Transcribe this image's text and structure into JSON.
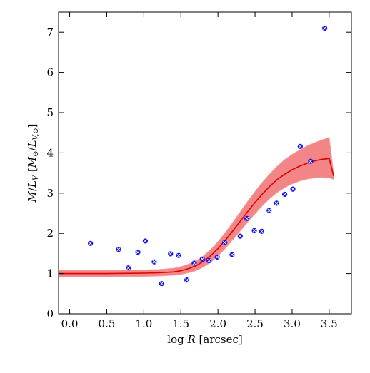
{
  "chart_data": {
    "type": "scatter",
    "xlabel": "log R [arcsec]",
    "ylabel": "M/L_V [M_sun/L_V,sun]",
    "xlim": [
      -0.15,
      3.8
    ],
    "ylim": [
      0,
      7.5
    ],
    "xticks": [
      0.0,
      0.5,
      1.0,
      1.5,
      2.0,
      2.5,
      3.0,
      3.5
    ],
    "xtick_labels": [
      "0.0",
      "0.5",
      "1.0",
      "1.5",
      "2.0",
      "2.5",
      "3.0",
      "3.5"
    ],
    "yticks": [
      0,
      1,
      2,
      3,
      4,
      5,
      6,
      7
    ],
    "ytick_labels": [
      "0",
      "1",
      "2",
      "3",
      "4",
      "5",
      "6",
      "7"
    ],
    "grid": false,
    "legend": "none",
    "series": [
      {
        "kind": "points",
        "color": "#1010ee",
        "x": [
          0.28,
          0.66,
          0.79,
          0.92,
          1.02,
          1.14,
          1.24,
          1.36,
          1.47,
          1.58,
          1.68,
          1.79,
          1.88,
          1.99,
          2.09,
          2.19,
          2.3,
          2.39,
          2.49,
          2.59,
          2.69,
          2.79,
          2.9,
          3.01,
          3.11,
          3.25,
          3.44
        ],
        "y": [
          1.75,
          1.6,
          1.14,
          1.53,
          1.81,
          1.29,
          0.75,
          1.49,
          1.45,
          0.84,
          1.26,
          1.36,
          1.32,
          1.41,
          1.77,
          1.47,
          1.93,
          2.37,
          2.07,
          2.05,
          2.57,
          2.75,
          2.97,
          3.1,
          4.16,
          3.79,
          7.1
        ]
      },
      {
        "kind": "model-line",
        "color": "#dd0000",
        "x": [
          -0.15,
          0.0,
          0.5,
          1.0,
          1.2,
          1.4,
          1.5,
          1.6,
          1.7,
          1.8,
          1.9,
          2.0,
          2.1,
          2.2,
          2.3,
          2.4,
          2.5,
          2.6,
          2.7,
          2.8,
          2.9,
          3.0,
          3.1,
          3.2,
          3.3,
          3.4,
          3.5,
          3.56
        ],
        "y": [
          1.0,
          1.0,
          1.0,
          1.01,
          1.02,
          1.04,
          1.07,
          1.12,
          1.19,
          1.3,
          1.44,
          1.62,
          1.83,
          2.06,
          2.3,
          2.54,
          2.77,
          2.98,
          3.17,
          3.34,
          3.47,
          3.58,
          3.67,
          3.74,
          3.8,
          3.84,
          3.86,
          3.42
        ]
      },
      {
        "kind": "model-band",
        "color": "#f07070",
        "x": [
          -0.15,
          0.0,
          0.5,
          1.0,
          1.2,
          1.4,
          1.5,
          1.6,
          1.7,
          1.8,
          1.9,
          2.0,
          2.1,
          2.2,
          2.3,
          2.4,
          2.5,
          2.6,
          2.7,
          2.8,
          2.9,
          3.0,
          3.1,
          3.2,
          3.3,
          3.4,
          3.5,
          3.56
        ],
        "upper": [
          1.08,
          1.08,
          1.08,
          1.09,
          1.1,
          1.13,
          1.17,
          1.23,
          1.31,
          1.43,
          1.59,
          1.79,
          2.02,
          2.27,
          2.53,
          2.79,
          3.04,
          3.27,
          3.48,
          3.67,
          3.83,
          3.96,
          4.07,
          4.17,
          4.25,
          4.32,
          4.38,
          3.48
        ],
        "lower": [
          0.92,
          0.92,
          0.92,
          0.93,
          0.94,
          0.96,
          0.98,
          1.02,
          1.07,
          1.16,
          1.28,
          1.44,
          1.63,
          1.84,
          2.06,
          2.28,
          2.49,
          2.69,
          2.87,
          3.02,
          3.14,
          3.23,
          3.3,
          3.35,
          3.38,
          3.39,
          3.38,
          3.34
        ]
      }
    ]
  }
}
